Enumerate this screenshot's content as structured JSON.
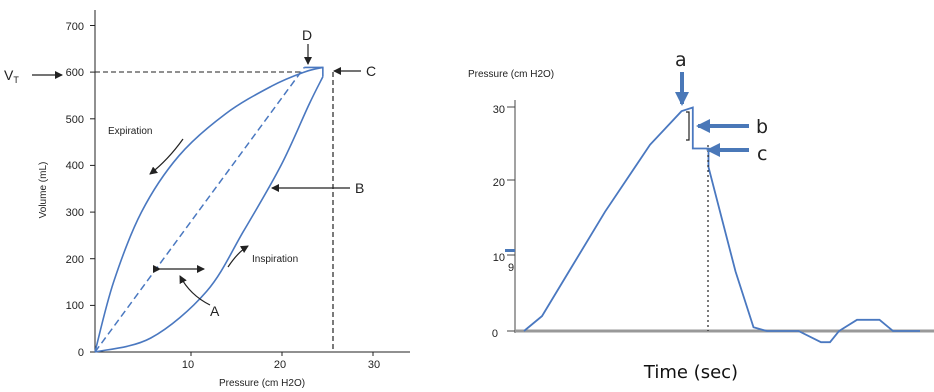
{
  "chart_data": [
    {
      "type": "line",
      "xlabel": "Pressure (cm H2O)",
      "ylabel": "Volume (mL)",
      "xlim": [
        0,
        30
      ],
      "ylim": [
        0,
        700
      ],
      "x_ticks": [
        "10",
        "20",
        "30"
      ],
      "y_ticks": [
        "0",
        "100",
        "200",
        "300",
        "400",
        "500",
        "600",
        "700"
      ],
      "vt_label": "V",
      "vt_subscript": "T",
      "series": [
        {
          "name": "Expiration",
          "x": [
            0,
            2,
            5,
            9,
            14,
            19,
            22.5,
            24.5
          ],
          "y": [
            0,
            150,
            300,
            420,
            510,
            570,
            600,
            610
          ]
        },
        {
          "name": "Inspiration",
          "x": [
            0,
            6,
            12,
            16,
            20,
            23,
            24.5
          ],
          "y": [
            0,
            30,
            130,
            260,
            400,
            530,
            590
          ]
        }
      ],
      "plateau": {
        "x": [
          22.5,
          24.5
        ],
        "y": [
          610,
          610
        ]
      },
      "diagonal": {
        "x": [
          0,
          22.5
        ],
        "y": [
          0,
          610
        ]
      },
      "vt_level": 600,
      "vt_pressure": 25,
      "annotations": [
        {
          "text": "A"
        },
        {
          "text": "B"
        },
        {
          "text": "C"
        },
        {
          "text": "D"
        }
      ],
      "curve_labels": [
        "Expiration",
        "Inspiration"
      ]
    },
    {
      "type": "line",
      "ylabel": "Pressure (cm H2O)",
      "xlabel": "Time (sec)",
      "ylim": [
        0,
        30
      ],
      "y_ticks": [
        "0",
        "10",
        "20",
        "30"
      ],
      "tick_overprint": "9",
      "series": [
        {
          "x": [
            0.2,
            0.6,
            1.2,
            2.0,
            3.0,
            3.7,
            3.95,
            3.95,
            4.3,
            4.3,
            4.9,
            5.3,
            5.6,
            6.3,
            6.8,
            7.0,
            7.2,
            7.6,
            8.1,
            8.4,
            9.0
          ],
          "y": [
            0,
            2,
            8,
            16,
            25,
            29.5,
            30,
            24.5,
            24.5,
            22,
            8,
            0.5,
            0,
            0,
            -1.5,
            -1.5,
            0,
            1.5,
            1.5,
            0,
            0
          ]
        }
      ],
      "annotations": [
        {
          "text": "a"
        },
        {
          "text": "b"
        },
        {
          "text": "c"
        }
      ]
    }
  ]
}
